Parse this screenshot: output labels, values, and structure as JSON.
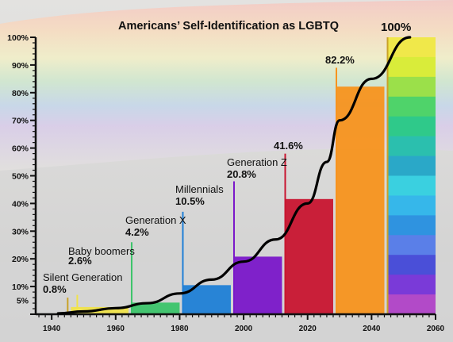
{
  "chart_data": {
    "type": "bar",
    "title": "Americans’ Self-Identification as LGBTQ",
    "xlabel": "",
    "ylabel": "",
    "xlim": [
      1935,
      2060
    ],
    "ylim": [
      0,
      100
    ],
    "x_ticks": [
      1940,
      1960,
      1980,
      2000,
      2020,
      2040,
      2060
    ],
    "y_ticks": [
      {
        "value": 5,
        "label": "5%"
      },
      {
        "value": 10,
        "label": "10%"
      },
      {
        "value": 20,
        "label": "20%"
      },
      {
        "value": 30,
        "label": "30%"
      },
      {
        "value": 40,
        "label": "40%"
      },
      {
        "value": 50,
        "label": "50%"
      },
      {
        "value": 60,
        "label": "60%"
      },
      {
        "value": 70,
        "label": "70%"
      },
      {
        "value": 80,
        "label": "80%"
      },
      {
        "value": 90,
        "label": "90%"
      },
      {
        "value": 100,
        "label": "100%"
      }
    ],
    "grid": false,
    "legend": "none",
    "bars": [
      {
        "name": "Silent Generation",
        "value_label": "0.8%",
        "x_start": 1946,
        "x_end": 1947,
        "value": 0.8,
        "color": "#c9a227",
        "marker_year": 1945,
        "marker_top": 6
      },
      {
        "name": "Baby boomers",
        "value_label": "2.6%",
        "x_start": 1946,
        "x_end": 1964,
        "value": 2.6,
        "color": "#f0e34a",
        "marker_year": 1948,
        "marker_top": 7
      },
      {
        "name": "Generation X",
        "value_label": "4.2%",
        "x_start": 1965,
        "x_end": 1980,
        "value": 4.2,
        "color": "#3cc46a",
        "marker_year": 1965,
        "marker_top": 26
      },
      {
        "name": "Millennials",
        "value_label": "10.5%",
        "x_start": 1981,
        "x_end": 1996,
        "value": 10.5,
        "color": "#1f7fd6",
        "marker_year": 1981,
        "marker_top": 37
      },
      {
        "name": "Generation Z",
        "value_label": "20.8%",
        "x_start": 1997,
        "x_end": 2012,
        "value": 20.8,
        "color": "#7a17c9",
        "marker_year": 1997,
        "marker_top": 48
      },
      {
        "name": "",
        "value_label": "41.6%",
        "x_start": 2013,
        "x_end": 2028,
        "value": 41.6,
        "color": "#c81530",
        "marker_year": 2013,
        "marker_top": 58
      },
      {
        "name": "",
        "value_label": "82.2%",
        "x_start": 2029,
        "x_end": 2044,
        "value": 82.2,
        "color": "#f7931e",
        "marker_year": 2029,
        "marker_top": 89
      },
      {
        "name": "",
        "value_label": "100%",
        "x_start": 2045,
        "x_end": 2060,
        "value": 100,
        "color": "rainbow",
        "marker_year": 2045,
        "marker_top": 100
      }
    ],
    "trend_line": {
      "x": [
        1942,
        1950,
        1960,
        1970,
        1980,
        1990,
        2000,
        2010,
        2020,
        2026,
        2030,
        2040,
        2052
      ],
      "y": [
        0.3,
        1.0,
        2.2,
        4.0,
        7.5,
        12.5,
        19.0,
        27.0,
        40.0,
        55.0,
        70.0,
        85.0,
        100.0
      ]
    },
    "rainbow_colors": [
      "#f0e84a",
      "#d9ec3a",
      "#9be04a",
      "#4fd36a",
      "#2fc98a",
      "#2bbfae",
      "#2aa8c8",
      "#3ad0e0",
      "#36b7ea",
      "#2f93e0",
      "#5a7fe8",
      "#4a4fd8",
      "#7a3ad8",
      "#b24ac8"
    ]
  }
}
